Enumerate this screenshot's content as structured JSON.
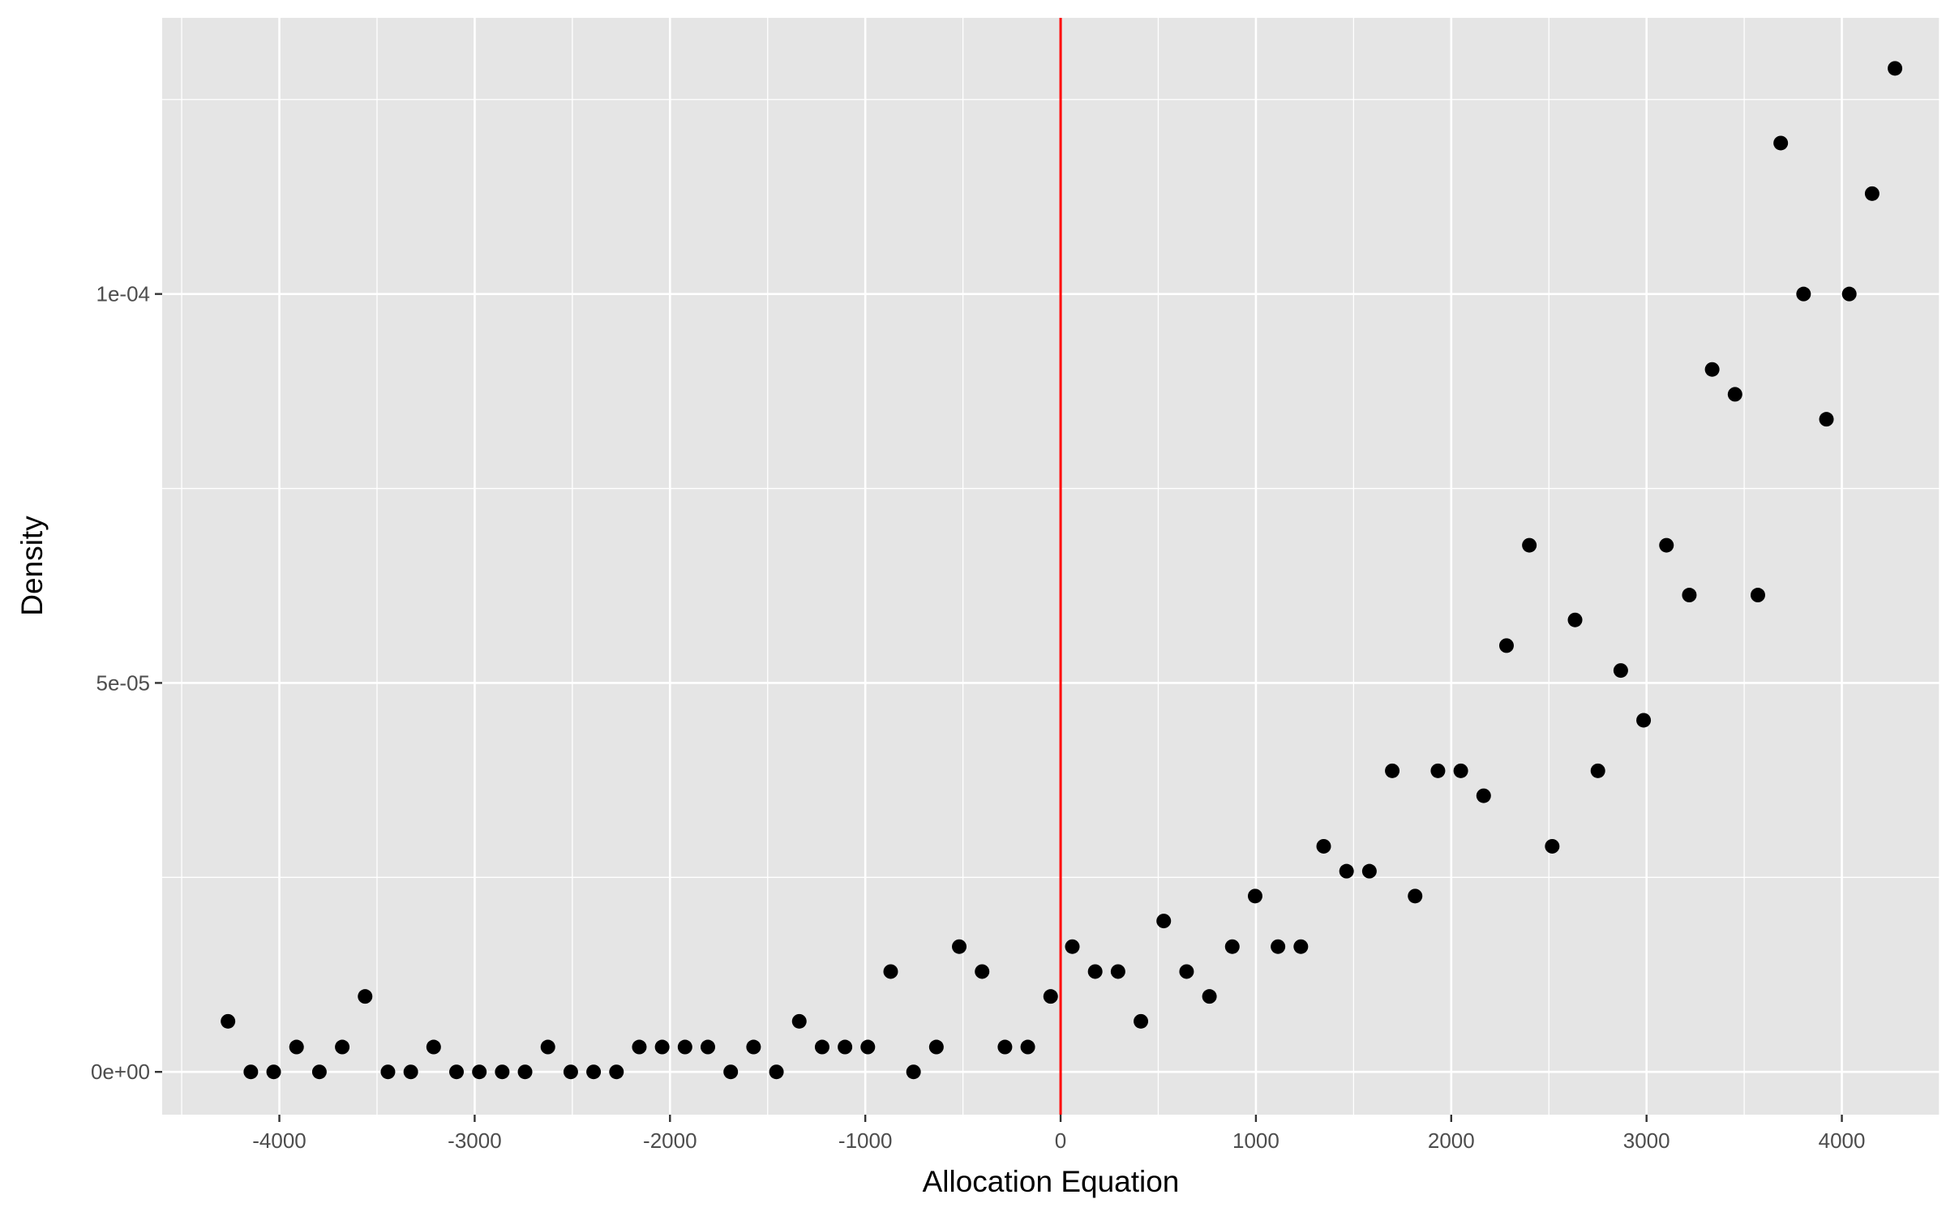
{
  "chart_data": {
    "type": "scatter",
    "title": "",
    "xlabel": "Allocation Equation",
    "ylabel": "Density",
    "xlim": [
      -4600,
      4500
    ],
    "ylim": [
      -5.5e-06,
      0.0001355
    ],
    "x_ticks": [
      -4000,
      -3000,
      -2000,
      -1000,
      0,
      1000,
      2000,
      3000,
      4000
    ],
    "x_tick_labels": [
      "-4000",
      "-3000",
      "-2000",
      "-1000",
      "0",
      "1000",
      "2000",
      "3000",
      "4000"
    ],
    "y_ticks": [
      0,
      5e-05,
      0.0001
    ],
    "y_tick_labels": [
      "0e+00",
      "5e-05",
      "1e-04"
    ],
    "grid": true,
    "panel_background": "#e5e5e5",
    "grid_color": "#ffffff",
    "point_color": "#000000",
    "vline": {
      "x": 0,
      "color": "#ff0000"
    },
    "series": [
      {
        "points": [
          [
            -4263,
            6.5e-06
          ],
          [
            -4146,
            0
          ],
          [
            -4029,
            0
          ],
          [
            -3912,
            3.2e-06
          ],
          [
            -3795,
            0
          ],
          [
            -3678,
            3.2e-06
          ],
          [
            -3561,
            9.7e-06
          ],
          [
            -3444,
            0
          ],
          [
            -3327,
            0
          ],
          [
            -3210,
            3.2e-06
          ],
          [
            -3093,
            0
          ],
          [
            -2976,
            0
          ],
          [
            -2859,
            0
          ],
          [
            -2742,
            0
          ],
          [
            -2625,
            3.2e-06
          ],
          [
            -2508,
            0
          ],
          [
            -2391,
            0
          ],
          [
            -2274,
            0
          ],
          [
            -2157,
            3.2e-06
          ],
          [
            -2040,
            3.2e-06
          ],
          [
            -1923,
            3.2e-06
          ],
          [
            -1806,
            3.2e-06
          ],
          [
            -1689,
            0
          ],
          [
            -1572,
            3.2e-06
          ],
          [
            -1455,
            0
          ],
          [
            -1338,
            6.5e-06
          ],
          [
            -1221,
            3.2e-06
          ],
          [
            -1104,
            3.2e-06
          ],
          [
            -987,
            3.2e-06
          ],
          [
            -870,
            1.29e-05
          ],
          [
            -753,
            0
          ],
          [
            -636,
            3.2e-06
          ],
          [
            -519,
            1.61e-05
          ],
          [
            -402,
            1.29e-05
          ],
          [
            -285,
            3.2e-06
          ],
          [
            -168,
            3.2e-06
          ],
          [
            -51,
            9.7e-06
          ],
          [
            60,
            1.61e-05
          ],
          [
            177,
            1.29e-05
          ],
          [
            294,
            1.29e-05
          ],
          [
            411,
            6.5e-06
          ],
          [
            528,
            1.94e-05
          ],
          [
            645,
            1.29e-05
          ],
          [
            762,
            9.7e-06
          ],
          [
            879,
            1.61e-05
          ],
          [
            996,
            2.26e-05
          ],
          [
            1113,
            1.61e-05
          ],
          [
            1230,
            1.61e-05
          ],
          [
            1347,
            2.9e-05
          ],
          [
            1464,
            2.58e-05
          ],
          [
            1581,
            2.58e-05
          ],
          [
            1698,
            3.87e-05
          ],
          [
            1815,
            2.26e-05
          ],
          [
            1932,
            3.87e-05
          ],
          [
            2049,
            3.87e-05
          ],
          [
            2166,
            3.55e-05
          ],
          [
            2283,
            5.48e-05
          ],
          [
            2400,
            6.77e-05
          ],
          [
            2517,
            2.9e-05
          ],
          [
            2634,
            5.81e-05
          ],
          [
            2751,
            3.87e-05
          ],
          [
            2868,
            5.16e-05
          ],
          [
            2985,
            4.52e-05
          ],
          [
            3102,
            6.77e-05
          ],
          [
            3219,
            6.13e-05
          ],
          [
            3336,
            9.03e-05
          ],
          [
            3453,
            8.71e-05
          ],
          [
            3570,
            6.13e-05
          ],
          [
            3687,
            0.0001194
          ],
          [
            3804,
            0.0001
          ],
          [
            3921,
            8.39e-05
          ],
          [
            4038,
            0.0001
          ],
          [
            4155,
            0.0001129
          ],
          [
            4272,
            0.000129
          ]
        ]
      }
    ]
  }
}
